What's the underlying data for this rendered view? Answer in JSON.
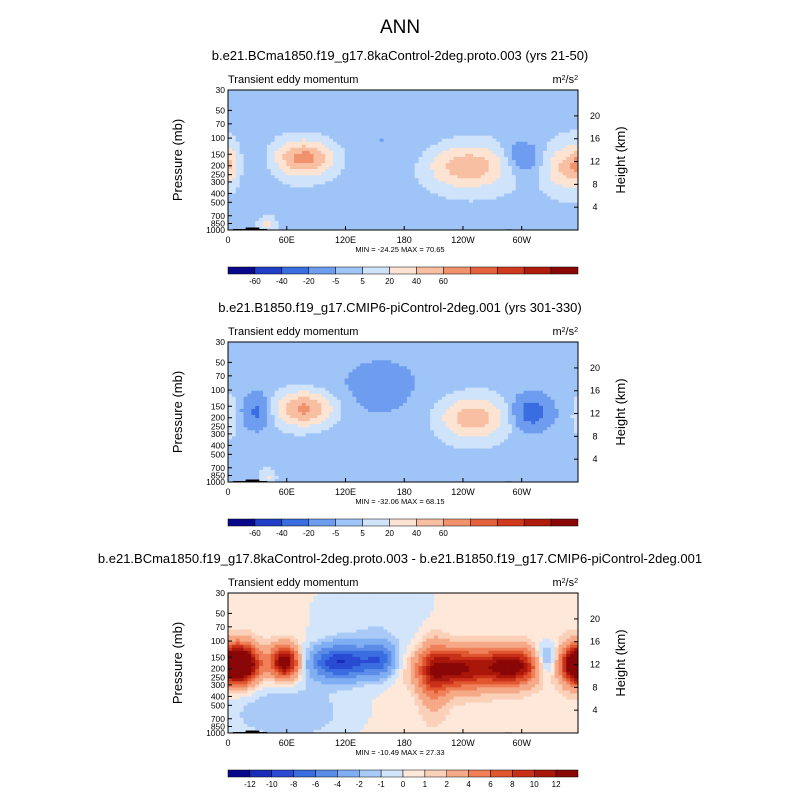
{
  "title": "ANN",
  "colors": {
    "land": "#000000",
    "frame": "#000000"
  },
  "chart_data": [
    {
      "type": "heatmap",
      "title": "b.e21.BCma1850.f19_g17.8kaControl-2deg.proto.003 (yrs 21-50)",
      "subtitle_left": "Transient eddy momentum",
      "units_base": "m",
      "units_sup1": "2",
      "units_mid": "/s",
      "units_sup2": "2",
      "ylabel": "Pressure (mb)",
      "ylabel_right": "Height (km)",
      "yticks": [
        "30",
        "50",
        "70",
        "100",
        "150",
        "200",
        "250",
        "300",
        "400",
        "500",
        "700",
        "850",
        "1000"
      ],
      "ytick_values": [
        30,
        50,
        70,
        100,
        150,
        200,
        250,
        300,
        400,
        500,
        700,
        850,
        1000
      ],
      "yticks_right": [
        "20",
        "16",
        "12",
        "8",
        "4"
      ],
      "yticks_right_values": [
        20,
        16,
        12,
        8,
        4
      ],
      "xticks": [
        "0",
        "60E",
        "120E",
        "180",
        "120W",
        "60W"
      ],
      "xtick_values": [
        0,
        60,
        120,
        180,
        240,
        300
      ],
      "xlim": [
        0,
        357.5
      ],
      "minmax_label": "MIN = -24.25  MAX =  70.65",
      "min": -24.25,
      "max": 70.65,
      "colorbar_labels": [
        "-60",
        "-40",
        "-20",
        "-5",
        "5",
        "20",
        "40",
        "60"
      ],
      "colorbar_colors": [
        "#08088a",
        "#1f3fc7",
        "#3a6ee0",
        "#6e9df0",
        "#9fc4f7",
        "#cfe3fb",
        "#fde3d2",
        "#f8bfa2",
        "#f0926c",
        "#e4623d",
        "#cf3a1f",
        "#b01c0c",
        "#8a0707"
      ],
      "blobs": [
        {
          "lon": 0,
          "p": 190,
          "v": 42,
          "slon": 8,
          "sp": 0.32
        },
        {
          "lon": 360,
          "p": 190,
          "v": 42,
          "slon": 8,
          "sp": 0.32
        },
        {
          "lon": 78,
          "p": 165,
          "v": 68,
          "slon": 20,
          "sp": 0.28
        },
        {
          "lon": 245,
          "p": 205,
          "v": 55,
          "slon": 26,
          "sp": 0.34
        },
        {
          "lon": 300,
          "p": 165,
          "v": -22,
          "slon": 14,
          "sp": 0.3
        },
        {
          "lon": 345,
          "p": 210,
          "v": 40,
          "slon": 14,
          "sp": 0.35
        },
        {
          "lon": 30,
          "p": 180,
          "v": -10,
          "slon": 14,
          "sp": 0.45
        },
        {
          "lon": 160,
          "p": 130,
          "v": -6,
          "slon": 40,
          "sp": 0.8
        },
        {
          "lon": 150,
          "p": 50,
          "v": -3,
          "slon": 60,
          "sp": 1.0
        },
        {
          "lon": 40,
          "p": 880,
          "v": 22,
          "slon": 5,
          "sp": 0.12
        }
      ],
      "bias": 3,
      "land": [
        {
          "lon0": 5,
          "lon1": 40,
          "p": 975
        },
        {
          "lon0": 18,
          "lon1": 32,
          "p": 940
        },
        {
          "lon0": 95,
          "lon1": 100,
          "p": 990
        },
        {
          "lon0": 283,
          "lon1": 290,
          "p": 985
        }
      ]
    },
    {
      "type": "heatmap",
      "title": "b.e21.B1850.f19_g17.CMIP6-piControl-2deg.001 (yrs 301-330)",
      "subtitle_left": "Transient eddy momentum",
      "units_base": "m",
      "units_sup1": "2",
      "units_mid": "/s",
      "units_sup2": "2",
      "ylabel": "Pressure (mb)",
      "ylabel_right": "Height (km)",
      "yticks": [
        "30",
        "50",
        "70",
        "100",
        "150",
        "200",
        "250",
        "300",
        "400",
        "500",
        "700",
        "850",
        "1000"
      ],
      "ytick_values": [
        30,
        50,
        70,
        100,
        150,
        200,
        250,
        300,
        400,
        500,
        700,
        850,
        1000
      ],
      "yticks_right": [
        "20",
        "16",
        "12",
        "8",
        "4"
      ],
      "yticks_right_values": [
        20,
        16,
        12,
        8,
        4
      ],
      "xticks": [
        "0",
        "60E",
        "120E",
        "180",
        "120W",
        "60W"
      ],
      "xtick_values": [
        0,
        60,
        120,
        180,
        240,
        300
      ],
      "xlim": [
        0,
        357.5
      ],
      "minmax_label": "MIN = -32.06  MAX =  68.15",
      "min": -32.06,
      "max": 68.15,
      "colorbar_labels": [
        "-60",
        "-40",
        "-20",
        "-5",
        "5",
        "20",
        "40",
        "60"
      ],
      "colorbar_colors": [
        "#08088a",
        "#1f3fc7",
        "#3a6ee0",
        "#6e9df0",
        "#9fc4f7",
        "#cfe3fb",
        "#fde3d2",
        "#f8bfa2",
        "#f0926c",
        "#e4623d",
        "#cf3a1f",
        "#b01c0c",
        "#8a0707"
      ],
      "blobs": [
        {
          "lon": 78,
          "p": 160,
          "v": 66,
          "slon": 19,
          "sp": 0.28
        },
        {
          "lon": 250,
          "p": 200,
          "v": 52,
          "slon": 22,
          "sp": 0.34
        },
        {
          "lon": 30,
          "p": 170,
          "v": -26,
          "slon": 11,
          "sp": 0.32
        },
        {
          "lon": 310,
          "p": 175,
          "v": -32,
          "slon": 15,
          "sp": 0.32
        },
        {
          "lon": 2,
          "p": 190,
          "v": 14,
          "slon": 6,
          "sp": 0.35
        },
        {
          "lon": 360,
          "p": 190,
          "v": 10,
          "slon": 6,
          "sp": 0.35
        },
        {
          "lon": 150,
          "p": 110,
          "v": -7,
          "slon": 50,
          "sp": 0.8
        },
        {
          "lon": 170,
          "p": 45,
          "v": -3,
          "slon": 60,
          "sp": 1.0
        },
        {
          "lon": 40,
          "p": 880,
          "v": 20,
          "slon": 5,
          "sp": 0.12
        }
      ],
      "bias": 2,
      "land": [
        {
          "lon0": 5,
          "lon1": 40,
          "p": 975
        },
        {
          "lon0": 18,
          "lon1": 32,
          "p": 940
        },
        {
          "lon0": 95,
          "lon1": 100,
          "p": 990
        },
        {
          "lon0": 283,
          "lon1": 290,
          "p": 985
        }
      ]
    },
    {
      "type": "heatmap",
      "title": "b.e21.BCma1850.f19_g17.8kaControl-2deg.proto.003 - b.e21.B1850.f19_g17.CMIP6-piControl-2deg.001",
      "subtitle_left": "Transient eddy momentum",
      "units_base": "m",
      "units_sup1": "2",
      "units_mid": "/s",
      "units_sup2": "2",
      "ylabel": "Pressure (mb)",
      "ylabel_right": "Height (km)",
      "yticks": [
        "30",
        "50",
        "70",
        "100",
        "150",
        "200",
        "250",
        "300",
        "400",
        "500",
        "700",
        "850",
        "1000"
      ],
      "ytick_values": [
        30,
        50,
        70,
        100,
        150,
        200,
        250,
        300,
        400,
        500,
        700,
        850,
        1000
      ],
      "yticks_right": [
        "20",
        "16",
        "12",
        "8",
        "4"
      ],
      "yticks_right_values": [
        20,
        16,
        12,
        8,
        4
      ],
      "xticks": [
        "0",
        "60E",
        "120E",
        "180",
        "120W",
        "60W"
      ],
      "xtick_values": [
        0,
        60,
        120,
        180,
        240,
        300
      ],
      "xlim": [
        0,
        357.5
      ],
      "minmax_label": "MIN = -10.49  MAX =  27.33",
      "min": -10.49,
      "max": 27.33,
      "colorbar_labels": [
        "-12",
        "-10",
        "-8",
        "-6",
        "-4",
        "-2",
        "-1",
        "0",
        "1",
        "2",
        "4",
        "6",
        "8",
        "10",
        "12"
      ],
      "colorbar_colors": [
        "#08088a",
        "#1a2db8",
        "#2a4ad4",
        "#3a6ee0",
        "#5a8ce8",
        "#80aef2",
        "#a9c9f7",
        "#d3e5fb",
        "#fde8da",
        "#fbd0b8",
        "#f6a987",
        "#ef8059",
        "#e0562f",
        "#c9301a",
        "#a9160a",
        "#8a0707"
      ],
      "blobs": [
        {
          "lon": 10,
          "p": 180,
          "v": 22,
          "slon": 14,
          "sp": 0.32
        },
        {
          "lon": 360,
          "p": 180,
          "v": 22,
          "slon": 12,
          "sp": 0.32
        },
        {
          "lon": 58,
          "p": 170,
          "v": 14,
          "slon": 10,
          "sp": 0.28
        },
        {
          "lon": 115,
          "p": 170,
          "v": -10,
          "slon": 22,
          "sp": 0.3
        },
        {
          "lon": 155,
          "p": 160,
          "v": -6,
          "slon": 12,
          "sp": 0.3
        },
        {
          "lon": 235,
          "p": 200,
          "v": 12,
          "slon": 26,
          "sp": 0.34
        },
        {
          "lon": 290,
          "p": 190,
          "v": 13,
          "slon": 18,
          "sp": 0.3
        },
        {
          "lon": 325,
          "p": 160,
          "v": -4,
          "slon": 8,
          "sp": 0.3
        },
        {
          "lon": 210,
          "p": 230,
          "v": 5,
          "slon": 10,
          "sp": 0.6
        },
        {
          "lon": 60,
          "p": 600,
          "v": -2.5,
          "slon": 50,
          "sp": 0.6
        },
        {
          "lon": 150,
          "p": 55,
          "v": -1.5,
          "slon": 50,
          "sp": 0.9
        }
      ],
      "bias": 0.6,
      "land": [
        {
          "lon0": 5,
          "lon1": 40,
          "p": 975
        },
        {
          "lon0": 18,
          "lon1": 32,
          "p": 940
        },
        {
          "lon0": 95,
          "lon1": 100,
          "p": 990
        },
        {
          "lon0": 283,
          "lon1": 290,
          "p": 985
        }
      ]
    }
  ]
}
